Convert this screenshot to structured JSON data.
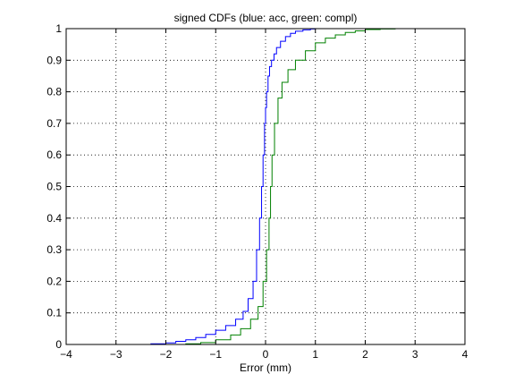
{
  "chart_data": {
    "type": "line",
    "title": "signed CDFs (blue: acc, green: compl)",
    "xlabel": "Error (mm)",
    "ylabel": "",
    "xlim": [
      -4,
      4
    ],
    "ylim": [
      0,
      1
    ],
    "x_ticks": [
      -4,
      -3,
      -2,
      -1,
      0,
      1,
      2,
      3,
      4
    ],
    "x_tick_labels": [
      "−4",
      "−3",
      "−2",
      "−1",
      "0",
      "1",
      "2",
      "3",
      "4"
    ],
    "y_ticks": [
      0,
      0.1,
      0.2,
      0.3,
      0.4,
      0.5,
      0.6,
      0.7,
      0.8,
      0.9,
      1
    ],
    "y_tick_labels": [
      "0",
      "0.1",
      "0.2",
      "0.3",
      "0.4",
      "0.5",
      "0.6",
      "0.7",
      "0.8",
      "0.9",
      "1"
    ],
    "grid": true,
    "series": [
      {
        "color": "#0000ff",
        "x": [
          -2.6,
          -2.3,
          -2.0,
          -1.8,
          -1.6,
          -1.4,
          -1.2,
          -1.0,
          -0.8,
          -0.6,
          -0.45,
          -0.35,
          -0.25,
          -0.18,
          -0.12,
          -0.08,
          -0.05,
          -0.02,
          0.0,
          0.02,
          0.05,
          0.08,
          0.12,
          0.17,
          0.22,
          0.3,
          0.4,
          0.5,
          0.6,
          0.75,
          0.9,
          1.0
        ],
        "y": [
          0.0,
          0.002,
          0.005,
          0.01,
          0.015,
          0.022,
          0.032,
          0.045,
          0.06,
          0.08,
          0.105,
          0.145,
          0.2,
          0.3,
          0.4,
          0.5,
          0.6,
          0.7,
          0.75,
          0.8,
          0.85,
          0.88,
          0.9,
          0.92,
          0.94,
          0.96,
          0.975,
          0.985,
          0.992,
          0.996,
          0.999,
          1.0
        ]
      },
      {
        "color": "#008000",
        "x": [
          -2.0,
          -1.6,
          -1.3,
          -1.0,
          -0.7,
          -0.5,
          -0.3,
          -0.15,
          -0.05,
          0.02,
          0.07,
          0.1,
          0.13,
          0.18,
          0.25,
          0.33,
          0.45,
          0.6,
          0.8,
          1.0,
          1.2,
          1.4,
          1.6,
          1.8,
          2.0,
          2.3,
          2.6
        ],
        "y": [
          0.0,
          0.002,
          0.006,
          0.015,
          0.03,
          0.05,
          0.08,
          0.12,
          0.2,
          0.3,
          0.4,
          0.5,
          0.6,
          0.7,
          0.78,
          0.83,
          0.87,
          0.9,
          0.93,
          0.955,
          0.97,
          0.98,
          0.988,
          0.993,
          0.997,
          0.999,
          1.0
        ]
      }
    ]
  }
}
